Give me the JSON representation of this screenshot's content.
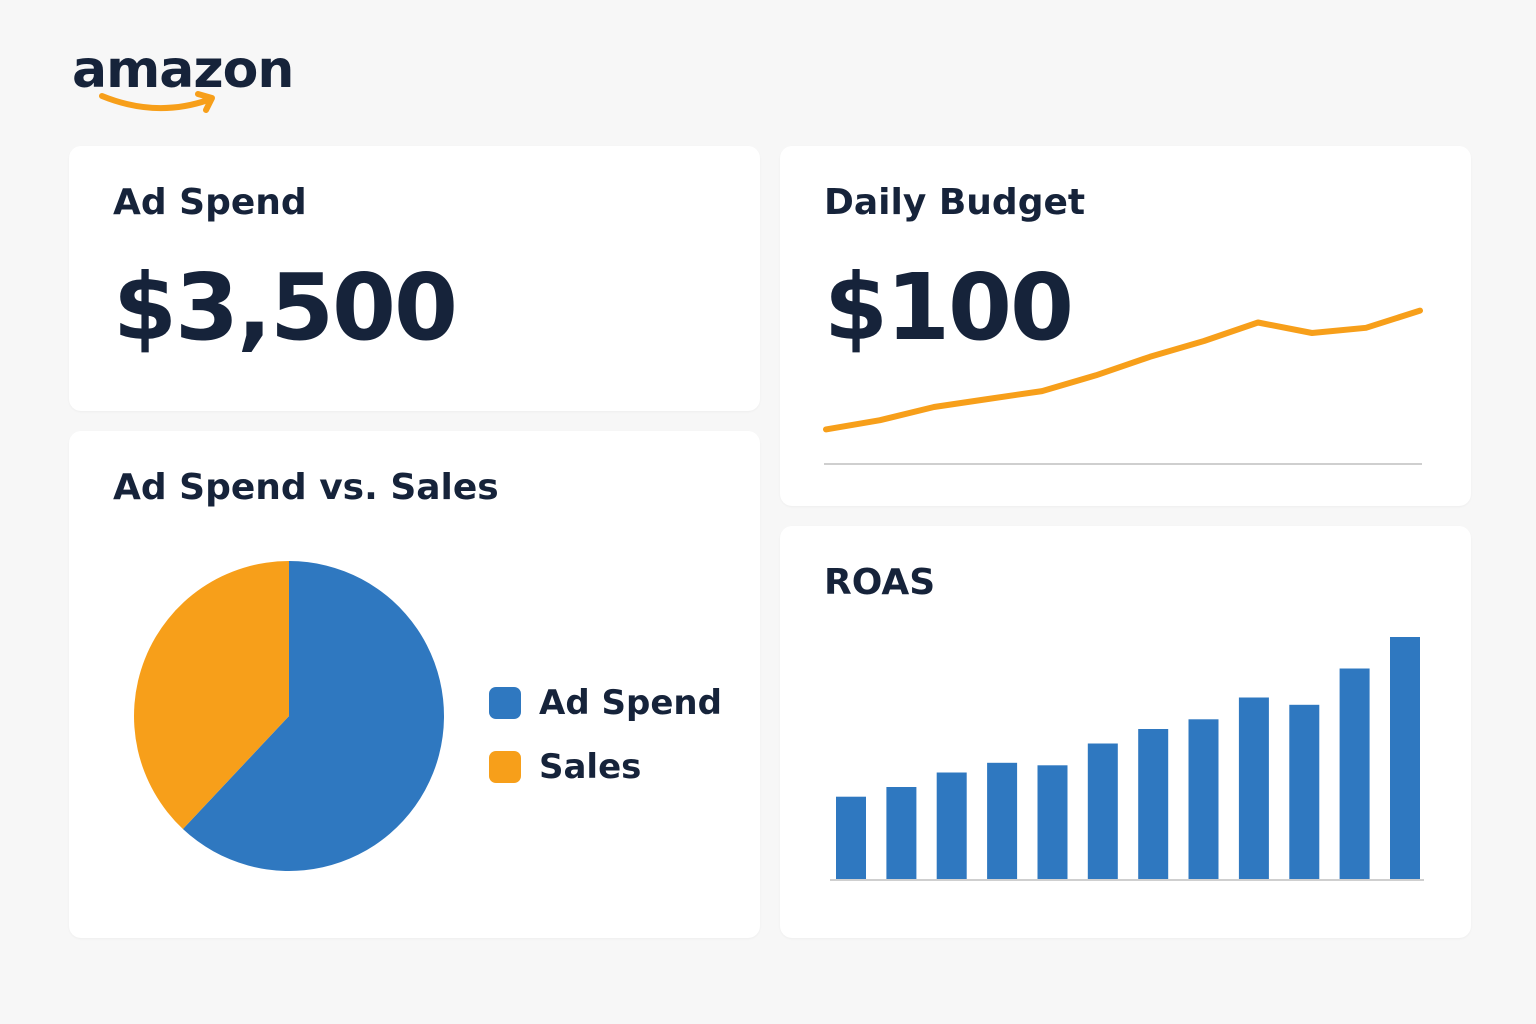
{
  "brand": {
    "name": "amazon",
    "accent": "#f79f1a"
  },
  "colors": {
    "blue": "#2f78c0",
    "orange": "#f79f1a",
    "text": "#16233a",
    "axis": "#cfcfcf"
  },
  "cards": {
    "ad_spend": {
      "title": "Ad Spend",
      "value": "$3,500"
    },
    "budget": {
      "title": "Daily Budget",
      "value": "$100"
    },
    "pie": {
      "title": "Ad Spend vs. Sales"
    },
    "roas": {
      "title": "ROAS"
    }
  },
  "chart_data": [
    {
      "type": "line",
      "title": "Daily Budget",
      "x": [
        1,
        2,
        3,
        4,
        5,
        6,
        7,
        8,
        9,
        10,
        11,
        12
      ],
      "series": [
        {
          "values": [
            5,
            12,
            22,
            28,
            34,
            46,
            60,
            72,
            86,
            78,
            82,
            95
          ],
          "color": "#f79f1a"
        }
      ],
      "ylim": [
        0,
        100
      ],
      "grid": false
    },
    {
      "type": "pie",
      "title": "Ad Spend vs. Sales",
      "labels": [
        "Ad Spend",
        "Sales"
      ],
      "values": [
        62,
        38
      ],
      "colors": [
        "#2f78c0",
        "#f79f1a"
      ],
      "legend": "right"
    },
    {
      "type": "bar",
      "title": "ROAS",
      "categories": [
        "1",
        "2",
        "3",
        "4",
        "5",
        "6",
        "7",
        "8",
        "9",
        "10",
        "11",
        "12"
      ],
      "values": [
        34,
        38,
        44,
        48,
        47,
        56,
        62,
        66,
        75,
        72,
        87,
        100
      ],
      "ylim": [
        0,
        100
      ],
      "color": "#2f78c0",
      "grid": false
    }
  ]
}
